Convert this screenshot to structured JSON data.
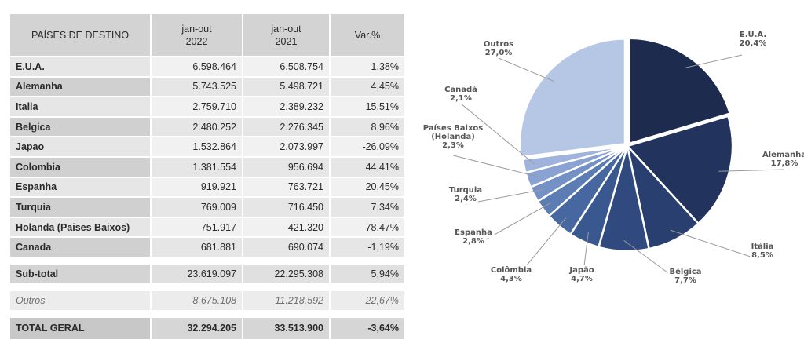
{
  "table": {
    "headers": [
      {
        "line1": "PAÍSES DE DESTINO",
        "line2": ""
      },
      {
        "line1": "jan-out",
        "line2": "2022"
      },
      {
        "line1": "jan-out",
        "line2": "2021"
      },
      {
        "line1": "Var.%",
        "line2": ""
      }
    ],
    "rows": [
      {
        "country": "E.U.A.",
        "v2022": "6.598.464",
        "v2021": "6.508.754",
        "var": "1,38%"
      },
      {
        "country": "Alemanha",
        "v2022": "5.743.525",
        "v2021": "5.498.721",
        "var": "4,45%"
      },
      {
        "country": "Italia",
        "v2022": "2.759.710",
        "v2021": "2.389.232",
        "var": "15,51%"
      },
      {
        "country": "Belgica",
        "v2022": "2.480.252",
        "v2021": "2.276.345",
        "var": "8,96%"
      },
      {
        "country": "Japao",
        "v2022": "1.532.864",
        "v2021": "2.073.997",
        "var": "-26,09%"
      },
      {
        "country": "Colombia",
        "v2022": "1.381.554",
        "v2021": "956.694",
        "var": "44,41%"
      },
      {
        "country": "Espanha",
        "v2022": "919.921",
        "v2021": "763.721",
        "var": "20,45%"
      },
      {
        "country": "Turquia",
        "v2022": "769.009",
        "v2021": "716.450",
        "var": "7,34%"
      },
      {
        "country": "Holanda (Paises Baixos)",
        "v2022": "751.917",
        "v2021": "421.320",
        "var": "78,47%"
      },
      {
        "country": "Canada",
        "v2022": "681.881",
        "v2021": "690.074",
        "var": "-1,19%"
      }
    ],
    "subtotal": {
      "country": "Sub-total",
      "v2022": "23.619.097",
      "v2021": "22.295.308",
      "var": "5,94%"
    },
    "others": {
      "country": "Outros",
      "v2022": "8.675.108",
      "v2021": "11.218.592",
      "var": "-22,67%"
    },
    "total": {
      "country": "TOTAL GERAL",
      "v2022": "32.294.205",
      "v2021": "33.513.900",
      "var": "-3,64%"
    }
  },
  "chart_data": {
    "type": "pie",
    "slices": [
      {
        "label": "E.U.A.",
        "value": 20.4,
        "text": "20,4%",
        "color": "#1d2b4f"
      },
      {
        "label": "Alemanha",
        "value": 17.8,
        "text": "17,8%",
        "color": "#22345e"
      },
      {
        "label": "Itália",
        "value": 8.5,
        "text": "8,5%",
        "color": "#293f6f"
      },
      {
        "label": "Bélgica",
        "value": 7.7,
        "text": "7,7%",
        "color": "#304a80"
      },
      {
        "label": "Japão",
        "value": 4.7,
        "text": "4,7%",
        "color": "#3a5890"
      },
      {
        "label": "Colômbia",
        "value": 4.3,
        "text": "4,3%",
        "color": "#46679f"
      },
      {
        "label": "Espanha",
        "value": 2.8,
        "text": "2,8%",
        "color": "#5c7cb4"
      },
      {
        "label": "Turquia",
        "value": 2.4,
        "text": "2,4%",
        "color": "#7491c5"
      },
      {
        "label": "Países Baixos\n(Holanda)",
        "value": 2.3,
        "text": "2,3%",
        "color": "#8aa2d2"
      },
      {
        "label": "Canadá",
        "value": 2.1,
        "text": "2,1%",
        "color": "#9fb3dd"
      },
      {
        "label": "Outros",
        "value": 27.0,
        "text": "27,0%",
        "color": "#b6c7e6"
      }
    ],
    "start_angle_deg": 0,
    "direction": "clockwise",
    "exploded_slices": [
      "E.U.A.",
      "Outros"
    ],
    "slice_separator_color": "#ffffff",
    "label_color": "#555555",
    "leader_line_color": "#9a9a9a"
  }
}
